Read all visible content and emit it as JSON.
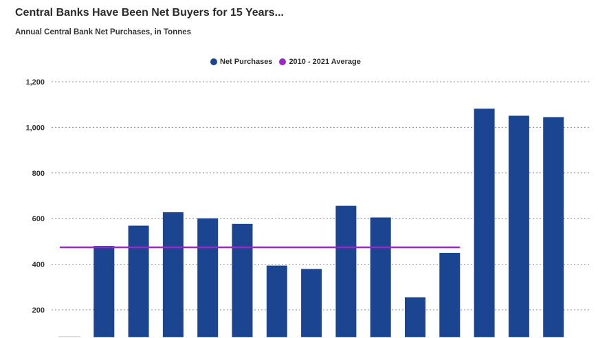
{
  "chart_data": {
    "type": "bar",
    "title": "Central Banks Have Been Net Buyers for 15 Years...",
    "subtitle": "Annual Central Bank Net Purchases, in Tonnes",
    "categories": [
      "",
      "",
      "",
      "",
      "",
      "",
      "",
      "",
      "",
      "",
      "",
      "",
      "",
      "",
      ""
    ],
    "series": [
      {
        "name": "Net Purchases",
        "type": "bar",
        "color": "#1b4591",
        "values": [
          null,
          480,
          569,
          628,
          601,
          577,
          394,
          379,
          656,
          605,
          255,
          450,
          1082,
          1051,
          1045
        ]
      },
      {
        "name": "2010 - 2021 Average",
        "type": "line",
        "color": "#9b27c4",
        "value": 474,
        "span_categories": [
          0,
          11
        ]
      }
    ],
    "yticks": [
      200,
      400,
      600,
      800,
      1000,
      1200
    ],
    "ytick_labels": [
      "200",
      "400",
      "600",
      "800",
      "1,000",
      "1,200"
    ],
    "ylim": [
      80,
      1200
    ],
    "grid": true,
    "legend_position": "top-center"
  }
}
